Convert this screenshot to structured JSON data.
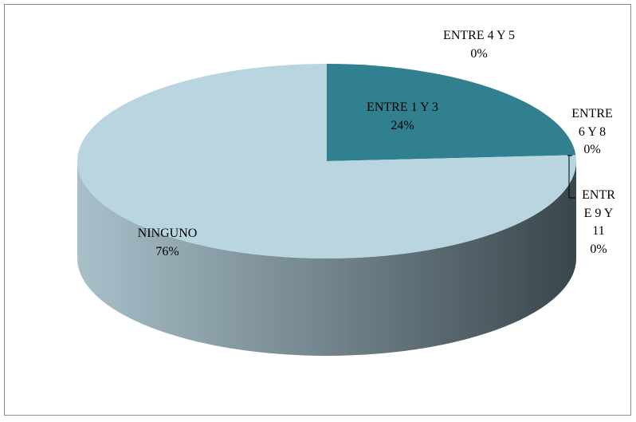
{
  "chart_data": {
    "type": "pie",
    "categories": [
      "ENTRE 1 Y 3",
      "ENTRE 4 Y 5",
      "ENTRE 6 Y 8",
      "ENTRE 9 Y 11",
      "NINGUNO"
    ],
    "values": [
      24,
      0,
      0,
      0,
      76
    ],
    "value_labels": [
      "24%",
      "0%",
      "0%",
      "0%",
      "76%"
    ],
    "colors": [
      "#31808f",
      "#4bacc6",
      "#7f9fab",
      "#a5bfc9",
      "#b9d5e0"
    ]
  }
}
